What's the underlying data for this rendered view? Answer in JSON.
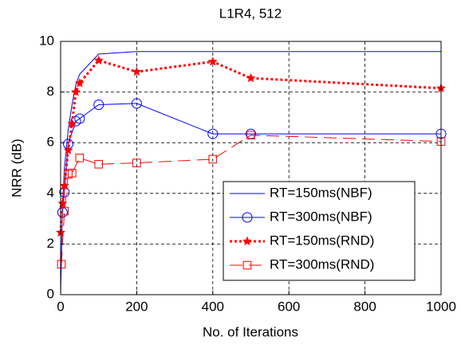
{
  "chart_data": {
    "type": "line",
    "title": "L1R4,  512",
    "xlabel": "No. of Iterations",
    "ylabel": "NRR (dB)",
    "xlim": [
      0,
      1000
    ],
    "xticks": [
      0,
      200,
      400,
      600,
      800,
      1000
    ],
    "ylim": [
      0,
      10
    ],
    "yticks": [
      0,
      2,
      4,
      6,
      8,
      10
    ],
    "grid": true,
    "legend": "lower right",
    "series": [
      {
        "name": "RT=150ms(NBF)",
        "color": "#0000ff",
        "line_style": "solid",
        "marker": "none",
        "x": [
          0,
          5,
          10,
          20,
          30,
          40,
          50,
          100,
          200,
          400,
          500,
          1000
        ],
        "values": [
          0,
          3.5,
          5,
          6.5,
          7.5,
          8.3,
          8.7,
          9.5,
          9.6,
          9.6,
          9.6,
          9.6
        ]
      },
      {
        "name": "RT=300ms(NBF)",
        "color": "#0000ff",
        "line_style": "solid",
        "marker": "circle",
        "x": [
          5,
          10,
          20,
          40,
          50,
          100,
          200,
          400,
          500,
          1000
        ],
        "values": [
          3.25,
          4.05,
          5.95,
          6.85,
          6.95,
          7.5,
          7.55,
          6.35,
          6.35,
          6.35
        ]
      },
      {
        "name": "RT=150ms(RND)",
        "color": "#ff0000",
        "line_style": "dotted",
        "marker": "star",
        "x": [
          0,
          5,
          10,
          20,
          30,
          40,
          50,
          100,
          200,
          400,
          500,
          1000
        ],
        "values": [
          2.45,
          3.6,
          4.3,
          5.7,
          6.75,
          8.0,
          8.35,
          9.25,
          8.8,
          9.2,
          8.55,
          8.15
        ]
      },
      {
        "name": "RT=300ms(RND)",
        "color": "#ff0000",
        "line_style": "dashed",
        "marker": "square",
        "x": [
          2,
          10,
          20,
          30,
          50,
          100,
          200,
          400,
          500,
          1000
        ],
        "values": [
          1.2,
          3.3,
          4.75,
          4.8,
          5.4,
          5.15,
          5.2,
          5.35,
          6.3,
          6.05
        ]
      }
    ]
  }
}
